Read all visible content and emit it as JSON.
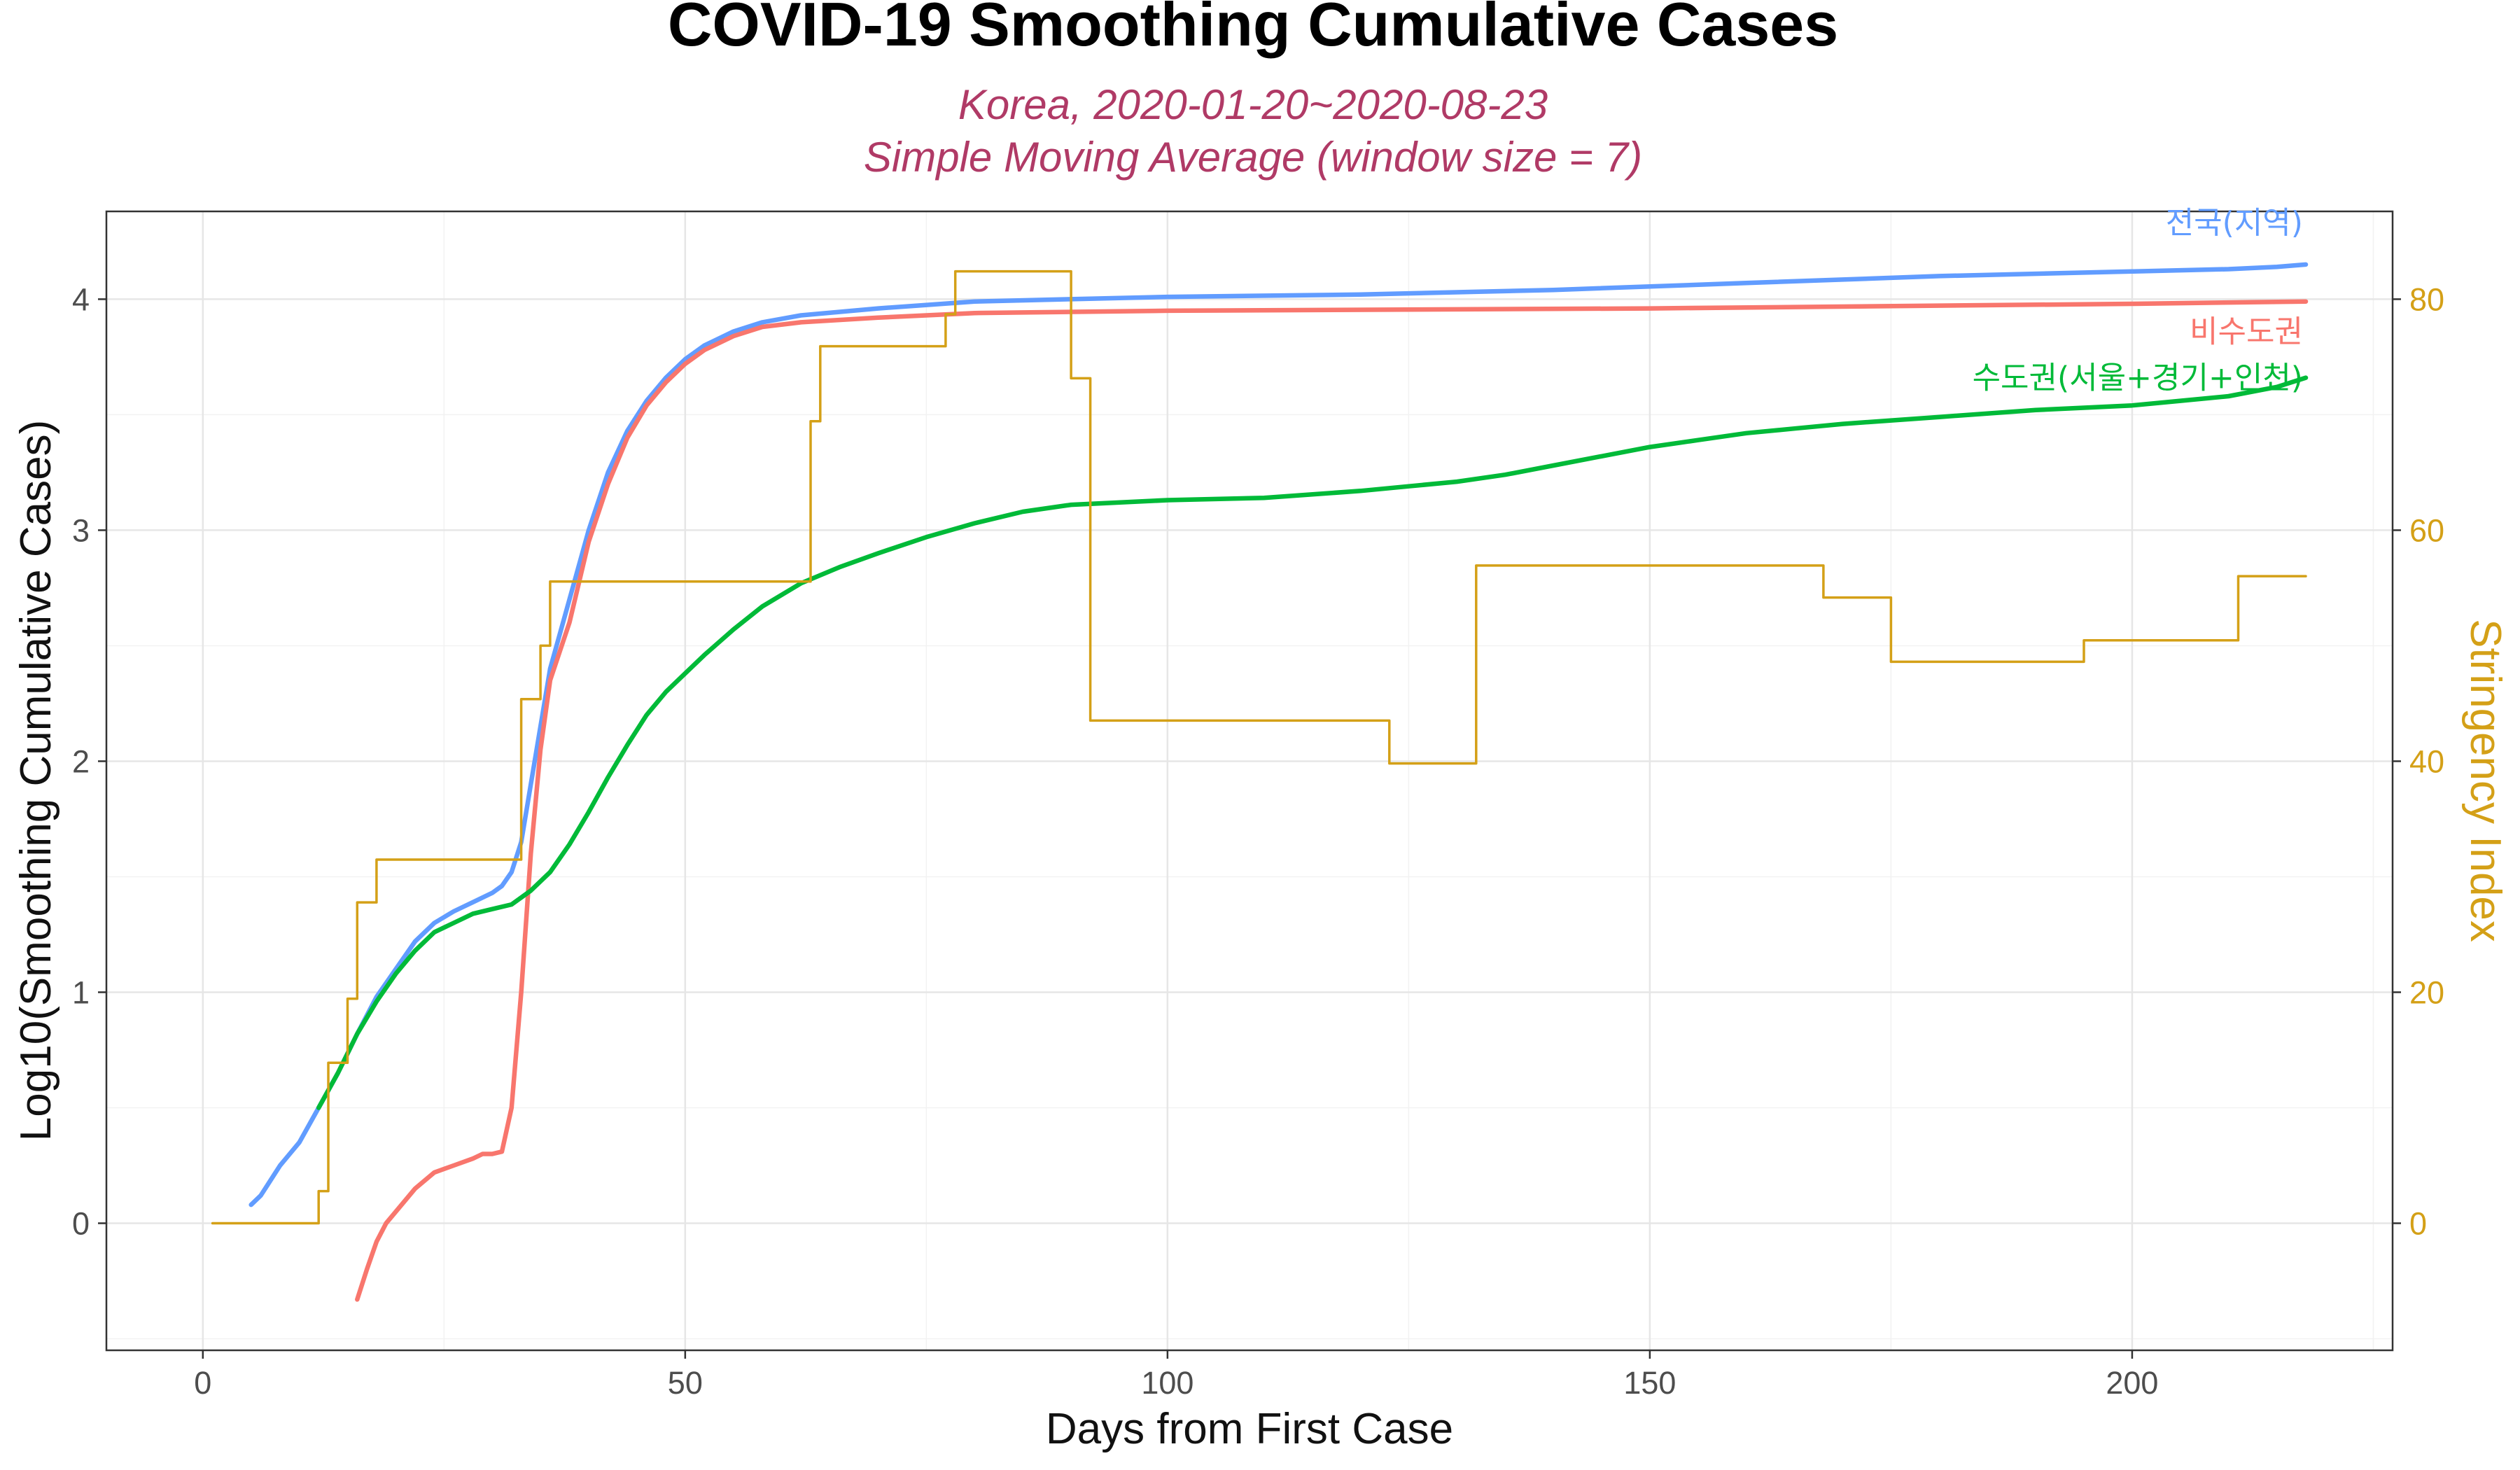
{
  "chart_data": {
    "type": "line",
    "title": "COVID-19 Smoothing Cumulative Cases",
    "subtitle_lines": [
      "Korea, 2020-01-20~2020-08-23",
      "Simple Moving Average (window size = 7)"
    ],
    "xlabel": "Days from First Case",
    "ylabel": "Log10(Smoothing Cumulative Cases)",
    "y2label": "Stringency Index",
    "xlim": [
      -10,
      227
    ],
    "ylim": [
      -0.55,
      4.38
    ],
    "y2lim": [
      -11,
      87.6
    ],
    "x_ticks": [
      0,
      50,
      100,
      150,
      200
    ],
    "x_tick_labels": [
      "0",
      "50",
      "100",
      "150",
      "200"
    ],
    "y_ticks": [
      0,
      1,
      2,
      3,
      4
    ],
    "y_tick_labels": [
      "0",
      "1",
      "2",
      "3",
      "4"
    ],
    "y2_ticks": [
      0,
      20,
      40,
      60,
      80
    ],
    "y2_tick_labels": [
      "0",
      "20",
      "40",
      "60",
      "80"
    ],
    "grid": true,
    "colors": {
      "national": "#619cff",
      "non_capital": "#f8766d",
      "capital": "#00ba38",
      "stringency": "#d4a017",
      "subtitle": "#b03a66"
    },
    "series": [
      {
        "key": "national",
        "name": "전국(지역)",
        "axis": "left",
        "points": [
          [
            5,
            0.08
          ],
          [
            6,
            0.12
          ],
          [
            8,
            0.25
          ],
          [
            10,
            0.35
          ],
          [
            12,
            0.5
          ],
          [
            14,
            0.65
          ],
          [
            16,
            0.82
          ],
          [
            18,
            0.98
          ],
          [
            20,
            1.1
          ],
          [
            22,
            1.22
          ],
          [
            24,
            1.3
          ],
          [
            26,
            1.35
          ],
          [
            28,
            1.39
          ],
          [
            30,
            1.43
          ],
          [
            31,
            1.46
          ],
          [
            32,
            1.52
          ],
          [
            33,
            1.65
          ],
          [
            34,
            1.9
          ],
          [
            35,
            2.15
          ],
          [
            36,
            2.4
          ],
          [
            38,
            2.7
          ],
          [
            40,
            3.0
          ],
          [
            42,
            3.25
          ],
          [
            44,
            3.43
          ],
          [
            46,
            3.56
          ],
          [
            48,
            3.66
          ],
          [
            50,
            3.74
          ],
          [
            52,
            3.8
          ],
          [
            55,
            3.86
          ],
          [
            58,
            3.9
          ],
          [
            62,
            3.93
          ],
          [
            70,
            3.96
          ],
          [
            80,
            3.99
          ],
          [
            90,
            4.0
          ],
          [
            100,
            4.01
          ],
          [
            120,
            4.02
          ],
          [
            140,
            4.04
          ],
          [
            160,
            4.07
          ],
          [
            180,
            4.1
          ],
          [
            200,
            4.12
          ],
          [
            210,
            4.13
          ],
          [
            215,
            4.14
          ],
          [
            218,
            4.15
          ]
        ]
      },
      {
        "key": "non_capital",
        "name": "비수도권",
        "axis": "left",
        "points": [
          [
            16,
            -0.33
          ],
          [
            17,
            -0.2
          ],
          [
            18,
            -0.08
          ],
          [
            19,
            0.0
          ],
          [
            20,
            0.05
          ],
          [
            22,
            0.15
          ],
          [
            24,
            0.22
          ],
          [
            26,
            0.25
          ],
          [
            28,
            0.28
          ],
          [
            29,
            0.3
          ],
          [
            30,
            0.3
          ],
          [
            31,
            0.31
          ],
          [
            32,
            0.5
          ],
          [
            33,
            1.0
          ],
          [
            34,
            1.6
          ],
          [
            35,
            2.05
          ],
          [
            36,
            2.35
          ],
          [
            38,
            2.6
          ],
          [
            40,
            2.95
          ],
          [
            42,
            3.2
          ],
          [
            44,
            3.4
          ],
          [
            46,
            3.54
          ],
          [
            48,
            3.64
          ],
          [
            50,
            3.72
          ],
          [
            52,
            3.78
          ],
          [
            55,
            3.84
          ],
          [
            58,
            3.88
          ],
          [
            62,
            3.9
          ],
          [
            70,
            3.92
          ],
          [
            80,
            3.94
          ],
          [
            100,
            3.95
          ],
          [
            150,
            3.96
          ],
          [
            200,
            3.98
          ],
          [
            218,
            3.99
          ]
        ]
      },
      {
        "key": "capital",
        "name": "수도권(서울+경기+인천)",
        "axis": "left",
        "points": [
          [
            12,
            0.5
          ],
          [
            14,
            0.65
          ],
          [
            16,
            0.82
          ],
          [
            18,
            0.96
          ],
          [
            20,
            1.08
          ],
          [
            22,
            1.18
          ],
          [
            24,
            1.26
          ],
          [
            26,
            1.3
          ],
          [
            28,
            1.34
          ],
          [
            30,
            1.36
          ],
          [
            32,
            1.38
          ],
          [
            34,
            1.44
          ],
          [
            36,
            1.52
          ],
          [
            38,
            1.64
          ],
          [
            40,
            1.78
          ],
          [
            42,
            1.93
          ],
          [
            44,
            2.07
          ],
          [
            46,
            2.2
          ],
          [
            48,
            2.3
          ],
          [
            50,
            2.38
          ],
          [
            52,
            2.46
          ],
          [
            55,
            2.57
          ],
          [
            58,
            2.67
          ],
          [
            62,
            2.77
          ],
          [
            66,
            2.84
          ],
          [
            70,
            2.9
          ],
          [
            75,
            2.97
          ],
          [
            80,
            3.03
          ],
          [
            85,
            3.08
          ],
          [
            90,
            3.11
          ],
          [
            100,
            3.13
          ],
          [
            110,
            3.14
          ],
          [
            120,
            3.17
          ],
          [
            125,
            3.19
          ],
          [
            130,
            3.21
          ],
          [
            135,
            3.24
          ],
          [
            140,
            3.28
          ],
          [
            145,
            3.32
          ],
          [
            150,
            3.36
          ],
          [
            155,
            3.39
          ],
          [
            160,
            3.42
          ],
          [
            165,
            3.44
          ],
          [
            170,
            3.46
          ],
          [
            180,
            3.49
          ],
          [
            190,
            3.52
          ],
          [
            200,
            3.54
          ],
          [
            205,
            3.56
          ],
          [
            210,
            3.58
          ],
          [
            215,
            3.62
          ],
          [
            218,
            3.66
          ]
        ]
      },
      {
        "key": "stringency",
        "name": "Stringency Index",
        "axis": "right",
        "step": true,
        "points": [
          [
            1,
            0
          ],
          [
            12,
            0
          ],
          [
            12,
            2.78
          ],
          [
            13,
            2.78
          ],
          [
            13,
            13.89
          ],
          [
            15,
            13.89
          ],
          [
            15,
            19.44
          ],
          [
            16,
            19.44
          ],
          [
            16,
            27.78
          ],
          [
            18,
            27.78
          ],
          [
            18,
            31.48
          ],
          [
            33,
            31.48
          ],
          [
            33,
            45.37
          ],
          [
            35,
            45.37
          ],
          [
            35,
            50
          ],
          [
            36,
            50
          ],
          [
            36,
            55.56
          ],
          [
            63,
            55.56
          ],
          [
            63,
            69.44
          ],
          [
            64,
            69.44
          ],
          [
            64,
            75.93
          ],
          [
            77,
            75.93
          ],
          [
            77,
            78.7
          ],
          [
            78,
            78.7
          ],
          [
            78,
            82.41
          ],
          [
            90,
            82.41
          ],
          [
            90,
            73.15
          ],
          [
            92,
            73.15
          ],
          [
            92,
            43.52
          ],
          [
            123,
            43.52
          ],
          [
            123,
            39.81
          ],
          [
            132,
            39.81
          ],
          [
            132,
            56.94
          ],
          [
            168,
            56.94
          ],
          [
            168,
            54.17
          ],
          [
            175,
            54.17
          ],
          [
            175,
            48.61
          ],
          [
            195,
            48.61
          ],
          [
            195,
            50.46
          ],
          [
            211,
            50.46
          ],
          [
            211,
            56.02
          ],
          [
            218,
            56.02
          ]
        ]
      }
    ],
    "annotations": [
      {
        "series": "national",
        "text": "전국(지역)"
      },
      {
        "series": "non_capital",
        "text": "비수도권"
      },
      {
        "series": "capital",
        "text": "수도권(서울+경기+인천)"
      }
    ]
  }
}
